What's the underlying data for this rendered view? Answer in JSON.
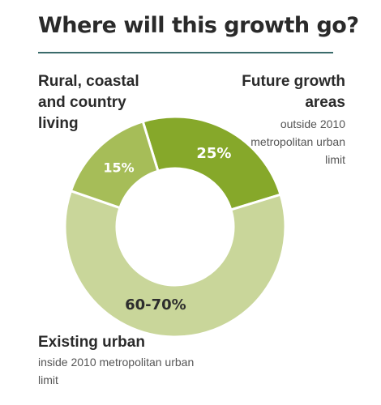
{
  "title": "Where will this growth go?",
  "labels": {
    "rural": "Rural, coastal and country living",
    "future": "Future growth areas",
    "future_sub": "outside 2010 metropolitan urban limit",
    "existing": "Existing urban",
    "existing_sub": "inside 2010 metropolitan urban limit"
  },
  "colors": {
    "future": "#86a82a",
    "rural": "#a6bd58",
    "existing": "#c9d69a",
    "label_light": "#ffffff",
    "label_dark": "#2d2d2d"
  },
  "chart_data": {
    "type": "pie",
    "variant": "donut",
    "title": "Where will this growth go?",
    "slices": [
      {
        "name": "Future growth areas",
        "value": 25,
        "label": "25%"
      },
      {
        "name": "Existing urban",
        "value": 60,
        "label": "60-70%"
      },
      {
        "name": "Rural, coastal and country living",
        "value": 15,
        "label": "15%"
      }
    ]
  }
}
